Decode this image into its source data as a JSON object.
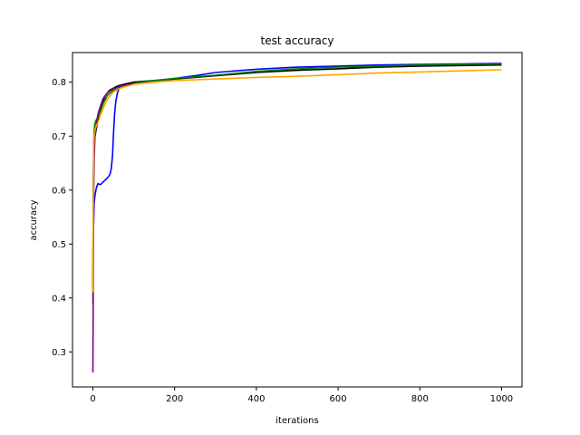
{
  "chart_data": {
    "type": "line",
    "title": "test accuracy",
    "xlabel": "iterations",
    "ylabel": "accuracy",
    "xlim": [
      -50,
      1050
    ],
    "ylim": [
      0.235,
      0.855
    ],
    "xticks": [
      0,
      200,
      400,
      600,
      800,
      1000
    ],
    "yticks": [
      0.3,
      0.4,
      0.5,
      0.6,
      0.7,
      0.8
    ],
    "xtick_labels": [
      "0",
      "200",
      "400",
      "600",
      "800",
      "1000"
    ],
    "ytick_labels": [
      "0.3",
      "0.4",
      "0.5",
      "0.6",
      "0.7",
      "0.8"
    ],
    "grid": false,
    "legend": false,
    "series": [
      {
        "color": "#0000ff",
        "x": [
          0,
          1,
          3,
          5,
          8,
          12,
          18,
          25,
          32,
          38,
          42,
          45,
          48,
          50,
          53,
          56,
          60,
          65,
          70,
          80,
          100,
          150,
          200,
          250,
          300,
          400,
          500,
          600,
          700,
          800,
          900,
          1000
        ],
        "y": [
          0.41,
          0.52,
          0.575,
          0.59,
          0.603,
          0.612,
          0.61,
          0.615,
          0.62,
          0.625,
          0.63,
          0.64,
          0.665,
          0.7,
          0.74,
          0.765,
          0.78,
          0.79,
          0.793,
          0.795,
          0.8,
          0.803,
          0.807,
          0.812,
          0.818,
          0.824,
          0.828,
          0.83,
          0.832,
          0.833,
          0.834,
          0.835
        ]
      },
      {
        "color": "#000000",
        "x": [
          0,
          1,
          2,
          4,
          6,
          10,
          15,
          20,
          30,
          40,
          60,
          80,
          100,
          150,
          200,
          300,
          400,
          500,
          600,
          700,
          800,
          900,
          1000
        ],
        "y": [
          0.41,
          0.62,
          0.66,
          0.695,
          0.705,
          0.72,
          0.74,
          0.755,
          0.775,
          0.785,
          0.793,
          0.797,
          0.8,
          0.803,
          0.806,
          0.812,
          0.818,
          0.822,
          0.825,
          0.828,
          0.83,
          0.831,
          0.832
        ]
      },
      {
        "color": "#008000",
        "x": [
          0,
          1,
          2,
          3,
          5,
          8,
          12,
          18,
          25,
          35,
          50,
          70,
          100,
          150,
          200,
          300,
          400,
          500,
          600,
          700,
          800,
          900,
          1000
        ],
        "y": [
          0.39,
          0.63,
          0.69,
          0.71,
          0.725,
          0.73,
          0.735,
          0.745,
          0.76,
          0.775,
          0.785,
          0.79,
          0.798,
          0.803,
          0.807,
          0.813,
          0.82,
          0.825,
          0.828,
          0.83,
          0.832,
          0.833,
          0.834
        ]
      },
      {
        "color": "#800080",
        "x": [
          0,
          1,
          2,
          3,
          5,
          8,
          12,
          18,
          25,
          35,
          50,
          70,
          100
        ],
        "y": [
          0.262,
          0.45,
          0.6,
          0.66,
          0.7,
          0.72,
          0.74,
          0.755,
          0.77,
          0.78,
          0.788,
          0.793,
          0.798
        ]
      },
      {
        "color": "#ffa500",
        "x": [
          0,
          1,
          2,
          3,
          5,
          8,
          12,
          18,
          25,
          35,
          50,
          70,
          100,
          150,
          200,
          300,
          400,
          500,
          600,
          700,
          800,
          900,
          1000
        ],
        "y": [
          0.41,
          0.6,
          0.68,
          0.7,
          0.712,
          0.718,
          0.725,
          0.738,
          0.752,
          0.768,
          0.782,
          0.79,
          0.796,
          0.8,
          0.803,
          0.806,
          0.809,
          0.811,
          0.814,
          0.817,
          0.819,
          0.821,
          0.823
        ]
      }
    ]
  }
}
